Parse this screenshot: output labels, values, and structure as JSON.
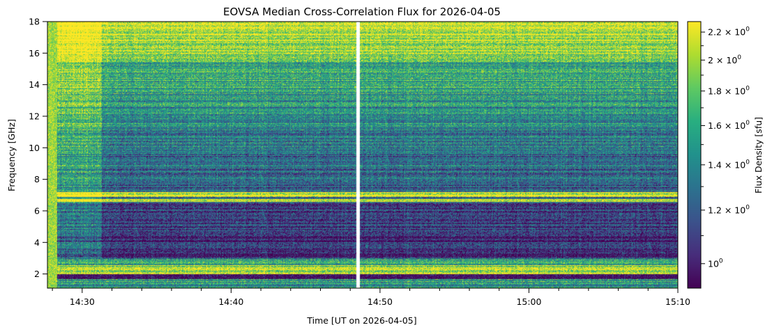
{
  "chart_data": {
    "type": "heatmap",
    "title": "EOVSA Median Cross-Correlation Flux for 2026-04-05",
    "xlabel": "Time [UT on 2026-04-05]",
    "ylabel": "Frequency [GHz]",
    "xlim": [
      "14:27:40",
      "15:10:00"
    ],
    "ylim": [
      1.1,
      18.0
    ],
    "x_ticks": [
      "14:30",
      "14:40",
      "14:50",
      "15:00",
      "15:10"
    ],
    "x_tick_minutes": [
      30,
      40,
      50,
      60,
      70
    ],
    "y_ticks": [
      "2",
      "4",
      "6",
      "8",
      "10",
      "12",
      "14",
      "16",
      "18"
    ],
    "y_tick_values": [
      2,
      4,
      6,
      8,
      10,
      12,
      14,
      16,
      18
    ],
    "colorbar": {
      "label": "Flux Density [sfu]",
      "scale": "log",
      "colormap": "viridis",
      "range": [
        0.92,
        2.28
      ],
      "ticks": [
        {
          "value": 1.0,
          "base": "10",
          "exp": "0"
        },
        {
          "value": 1.2,
          "base": "1.2 × 10",
          "exp": "0"
        },
        {
          "value": 1.4,
          "base": "1.4 × 10",
          "exp": "0"
        },
        {
          "value": 1.6,
          "base": "1.6 × 10",
          "exp": "0"
        },
        {
          "value": 1.8,
          "base": "1.8 × 10",
          "exp": "0"
        },
        {
          "value": 2.0,
          "base": "2 × 10",
          "exp": "0"
        },
        {
          "value": 2.2,
          "base": "2.2 × 10",
          "exp": "0"
        }
      ]
    },
    "data_gap_time": "14:48:30"
  }
}
